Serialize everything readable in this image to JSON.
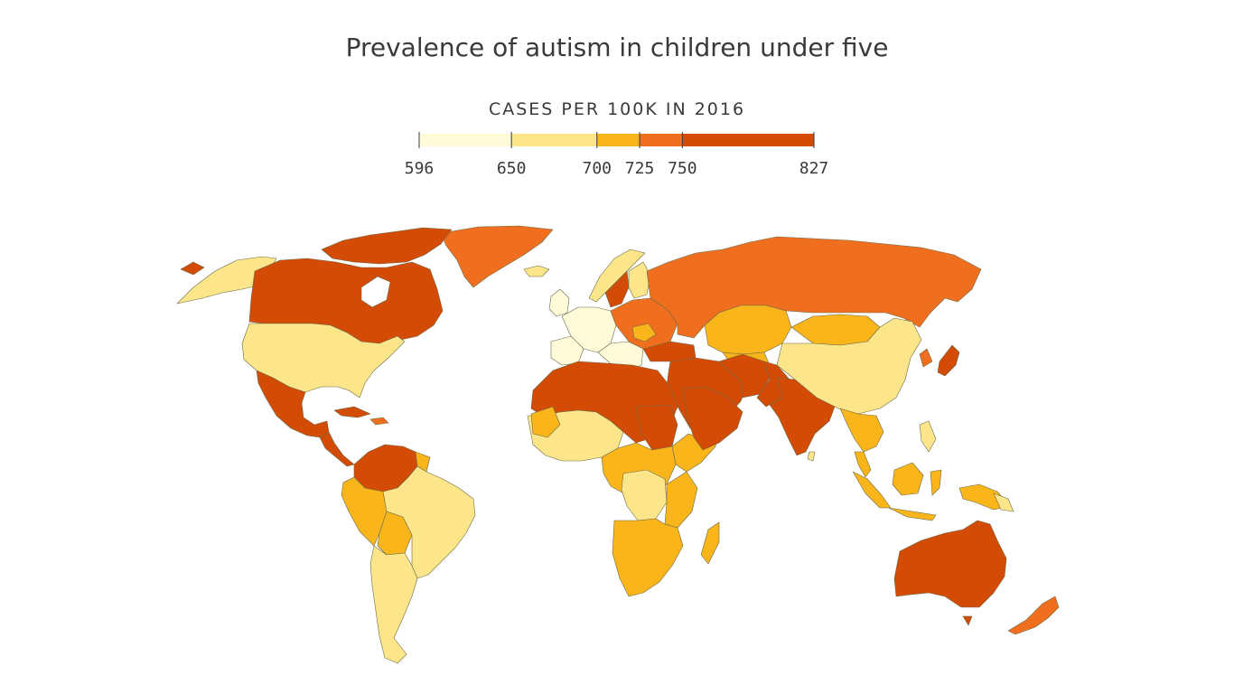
{
  "title": "Prevalence of autism in children under five",
  "legend": {
    "title": "CASES PER 100K IN 2016",
    "breaks": [
      596,
      650,
      700,
      725,
      750,
      827
    ],
    "tick_labels": [
      "596",
      "650",
      "700",
      "725",
      "750",
      "827"
    ],
    "colors": [
      "#fffbd9",
      "#fde68a",
      "#f9b51a",
      "#ef6f1f",
      "#d44b05"
    ]
  },
  "colors": {
    "bin1": "#fffbd9",
    "bin2": "#fde68a",
    "bin3": "#f9b51a",
    "bin4": "#ef6f1f",
    "bin5": "#d44b05"
  }
}
